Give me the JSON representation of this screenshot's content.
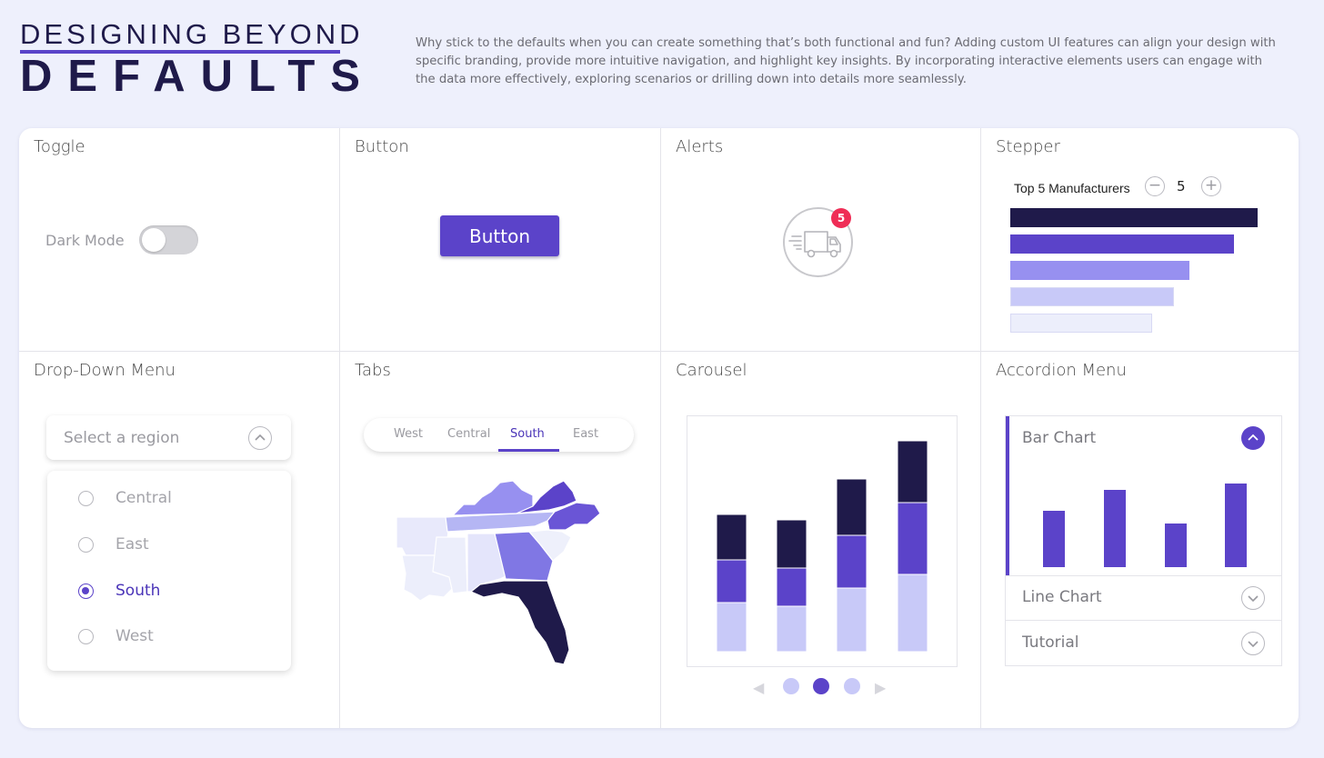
{
  "header": {
    "title_line1": "DESIGNING BEYOND",
    "title_line2": "DEFAULTS",
    "intro": "Why stick to the defaults when you can create something that’s both functional and fun? Adding custom UI features can align your design with specific branding, provide more intuitive navigation, and highlight key insights. By incorporating interactive elements users can engage with the data more effectively, exploring scenarios or drilling down into details more seamlessly."
  },
  "colors": {
    "accent": "#5b43c9",
    "dark": "#1f1a4a",
    "badge": "#ef2d56",
    "light1": "#9790f0",
    "light2": "#c8c9f8",
    "light3": "#eceefb"
  },
  "toggle": {
    "title": "Toggle",
    "label": "Dark Mode",
    "on": false
  },
  "button": {
    "title": "Button",
    "label": "Button"
  },
  "alerts": {
    "title": "Alerts",
    "count": "5",
    "icon": "truck-icon"
  },
  "stepper": {
    "title": "Stepper",
    "label": "Top 5 Manufacturers",
    "value": "5",
    "minus": "−",
    "plus": "+",
    "bars": [
      {
        "value": 1.0,
        "color": "#1f1a4a"
      },
      {
        "value": 0.905,
        "color": "#5b43c9"
      },
      {
        "value": 0.725,
        "color": "#9790f0"
      },
      {
        "value": 0.66,
        "color": "#c8c9f8"
      },
      {
        "value": 0.575,
        "color": "#eceefb"
      }
    ]
  },
  "dropdown": {
    "title": "Drop-Down Menu",
    "placeholder": "Select a region",
    "options": [
      {
        "label": "Central",
        "selected": false
      },
      {
        "label": "East",
        "selected": false
      },
      {
        "label": "South",
        "selected": true
      },
      {
        "label": "West",
        "selected": false
      }
    ]
  },
  "tabs": {
    "title": "Tabs",
    "items": [
      {
        "label": "West",
        "active": false
      },
      {
        "label": "Central",
        "active": false
      },
      {
        "label": "South",
        "active": true
      },
      {
        "label": "East",
        "active": false
      }
    ]
  },
  "carousel": {
    "title": "Carousel",
    "active_slide": 2,
    "slides": 3,
    "stacks": [
      [
        54,
        47,
        50
      ],
      [
        50,
        42,
        53
      ],
      [
        70,
        58,
        62
      ],
      [
        85,
        79,
        68
      ]
    ],
    "stack_colors": [
      "#c8c9f8",
      "#5b43c9",
      "#1f1a4a"
    ]
  },
  "accordion": {
    "title": "Accordion Menu",
    "items": [
      {
        "label": "Bar Chart",
        "expanded": true
      },
      {
        "label": "Line Chart",
        "expanded": false
      },
      {
        "label": "Tutorial",
        "expanded": false
      }
    ],
    "bar_values": [
      62,
      85,
      48,
      92
    ]
  }
}
